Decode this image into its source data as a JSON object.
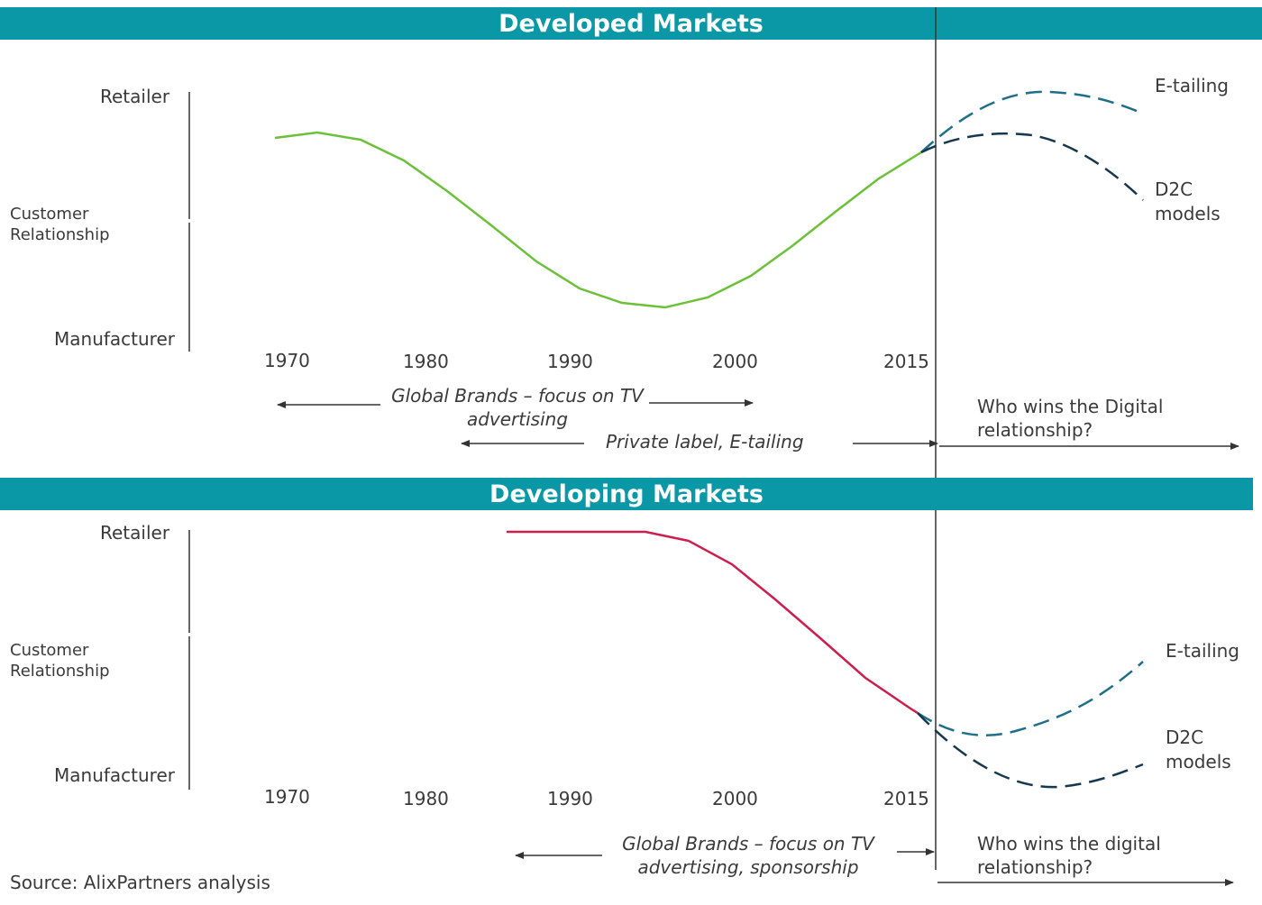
{
  "colors": {
    "banner": "#0a97a6",
    "developed_line": "#6cc03a",
    "developing_line": "#cc1f4e",
    "etailing": "#1f6f88",
    "d2c": "#16384f",
    "axis": "#333333"
  },
  "developed": {
    "title": "Developed Markets",
    "levels": {
      "top": "Retailer",
      "middle_line1": "Customer",
      "middle_line2": "Relationship",
      "bottom": "Manufacturer"
    },
    "years": [
      "1970",
      "1980",
      "1990",
      "2000",
      "2015"
    ],
    "notes": {
      "global_brands_line1": "Global Brands – focus on TV",
      "global_brands_line2": "advertising",
      "private_label": "Private label,  E-tailing"
    },
    "question_line1": "Who wins the Digital",
    "question_line2": "relationship?",
    "series": {
      "etailing": "E-tailing",
      "d2c_line1": "D2C",
      "d2c_line2": "models"
    }
  },
  "developing": {
    "title": "Developing Markets",
    "levels": {
      "top": "Retailer",
      "middle_line1": "Customer",
      "middle_line2": "Relationship",
      "bottom": "Manufacturer"
    },
    "years": [
      "1970",
      "1980",
      "1990",
      "2000",
      "2015"
    ],
    "notes": {
      "global_brands_line1": "Global Brands – focus on TV",
      "global_brands_line2": "advertising, sponsorship"
    },
    "question_line1": "Who wins the digital",
    "question_line2": "relationship?",
    "series": {
      "etailing": "E-tailing",
      "d2c_line1": "D2C",
      "d2c_line2": "models"
    }
  },
  "source": "Source: AlixPartners analysis"
}
